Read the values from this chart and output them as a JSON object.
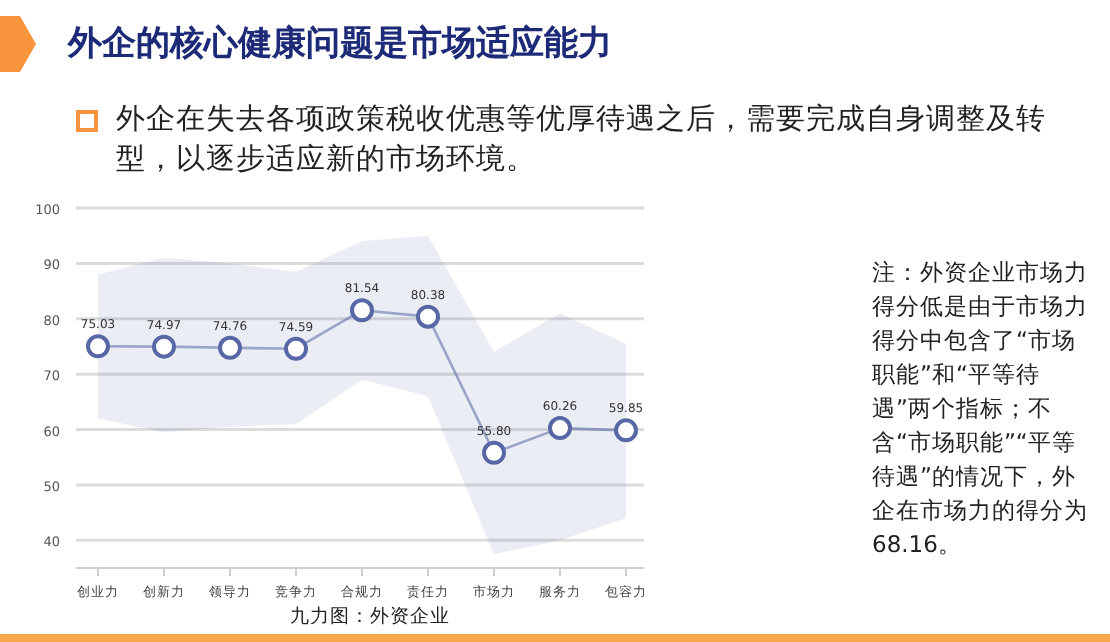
{
  "chart_data": {
    "type": "line",
    "title": "外企的核心健康问题是市场适应能力",
    "subtitle": "外企在失去各项政策税收优惠等优厚待遇之后，需要完成自身调整及转型，以逐步适应新的市场环境。",
    "xlabel": "九力图：外资企业",
    "annotations": [
      "注：外资企业市场力得分低是由于市场力得分中包含了“市场职能”和“平等待遇”两个指标；不含“市场职能”“平等待遇”的情况下，外企在市场力的得分为68.16。"
    ],
    "categories": [
      "创业力",
      "创新力",
      "领导力",
      "竞争力",
      "合规力",
      "责任力",
      "市场力",
      "服务力",
      "包容力"
    ],
    "series": [
      {
        "color": "#5767a6",
        "values": [
          75.03,
          74.97,
          74.76,
          74.59,
          81.54,
          80.38,
          55.8,
          60.26,
          59.85
        ],
        "value_labels": [
          "75.03",
          "74.97",
          "74.76",
          "74.59",
          "81.54",
          "80.38",
          "55.80",
          "60.26",
          "59.85"
        ],
        "lower": [
          62,
          59.5,
          60.5,
          61,
          69,
          66,
          37.5,
          40,
          44
        ],
        "upper": [
          88,
          91,
          90,
          88.5,
          94,
          95,
          74,
          81,
          75.5
        ]
      }
    ],
    "ylim": [
      35,
      100
    ],
    "yticks": [
      40,
      50,
      60,
      70,
      80,
      90,
      100
    ],
    "grid": "y",
    "marker": "circle"
  }
}
